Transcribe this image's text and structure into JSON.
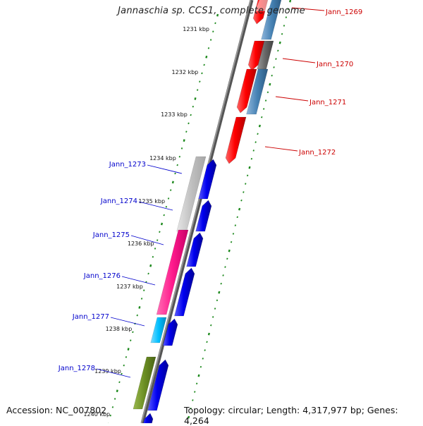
{
  "title": "Jannaschia sp. CCS1, complete genome",
  "accession": "Accession: NC_007802",
  "summary": "Topology: circular; Length: 4,317,977 bp; Genes: 4,264",
  "colors": {
    "backbone": "#7a7a7a",
    "tick": "#1e8a1e",
    "forward_label": "#cc0000",
    "reverse_label": "#0000cc",
    "red": "#ff0000",
    "steelblue": "#4682b4",
    "gray": "#666666",
    "blue": "#0000ee",
    "lightgray": "#c0c0c0",
    "pink": "#ff1a8c",
    "cyan": "#00bfff",
    "olive": "#6b8e23"
  },
  "ticks": [
    "1231 kbp",
    "1232 kbp",
    "1233 kbp",
    "1234 kbp",
    "1235 kbp",
    "1236 kbp",
    "1237 kbp",
    "1238 kbp",
    "1239 kbp",
    "1240 kbp"
  ],
  "forward_genes": [
    "Jann_1269",
    "Jann_1270",
    "Jann_1271",
    "Jann_1272"
  ],
  "reverse_genes": [
    "Jann_1273",
    "Jann_1274",
    "Jann_1275",
    "Jann_1276",
    "Jann_1277",
    "Jann_1278"
  ]
}
